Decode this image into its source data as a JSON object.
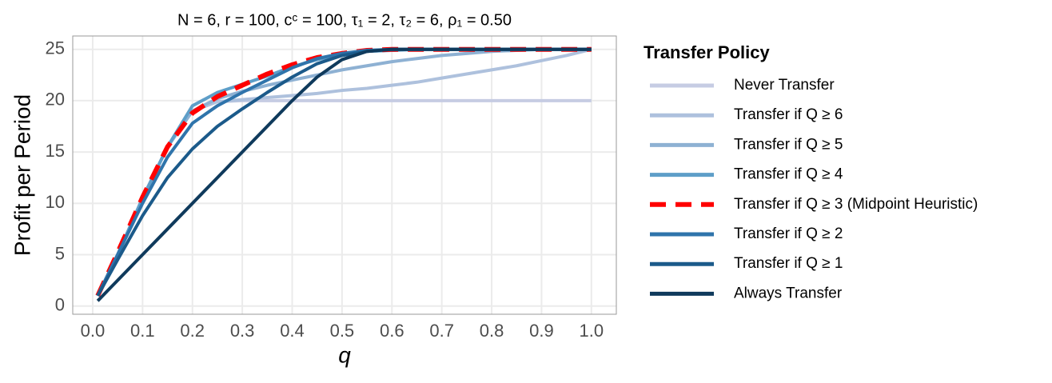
{
  "chart_data": {
    "type": "line",
    "title": "N = 6, r = 100, cᶜ = 100, τ₁ = 2, τ₂ = 6, ρ₁ = 0.50",
    "x_label": "q",
    "y_label": "Profit per Period",
    "legend_title": "Transfer Policy",
    "legend_position": "right",
    "grid": true,
    "xlim": [
      -0.04,
      1.05
    ],
    "ylim": [
      -0.8,
      26.3
    ],
    "xticks": [
      {
        "value": 0,
        "label": "0.0"
      },
      0.1,
      0.2,
      0.3,
      0.4,
      0.5,
      0.6,
      0.7,
      0.8,
      0.9,
      {
        "value": 1,
        "label": "1.0"
      }
    ],
    "yticks": [
      0,
      5,
      10,
      15,
      20,
      25
    ],
    "x": [
      0.01,
      0.05,
      0.1,
      0.15,
      0.2,
      0.25,
      0.3,
      0.35,
      0.4,
      0.45,
      0.5,
      0.55,
      0.6,
      0.65,
      0.7,
      0.75,
      0.8,
      0.85,
      0.9,
      0.95,
      1.0
    ],
    "series": [
      {
        "name": "Never Transfer",
        "color": "#c6cce3",
        "values": [
          1,
          5,
          10.5,
          15.5,
          19,
          19.9,
          20,
          20,
          20,
          20,
          20,
          20,
          20,
          20,
          20,
          20,
          20,
          20,
          20,
          20,
          20
        ]
      },
      {
        "name": "Transfer if Q ≥ 6",
        "color": "#aec1dd",
        "values": [
          1,
          5,
          10.5,
          15.5,
          19,
          19.9,
          20.1,
          20.3,
          20.5,
          20.7,
          21,
          21.2,
          21.5,
          21.8,
          22.2,
          22.6,
          23,
          23.4,
          23.9,
          24.4,
          25
        ]
      },
      {
        "name": "Transfer if Q ≥ 5",
        "color": "#8eb1d3",
        "values": [
          1,
          5,
          10.5,
          15.5,
          19,
          20.2,
          20.9,
          21.5,
          22,
          22.5,
          23,
          23.4,
          23.8,
          24.1,
          24.4,
          24.6,
          24.8,
          24.9,
          25,
          25,
          25
        ]
      },
      {
        "name": "Transfer if Q ≥ 4",
        "color": "#5e9ec8",
        "values": [
          1,
          5,
          10.5,
          15.5,
          19.5,
          20.8,
          21.6,
          22.4,
          23.3,
          24,
          24.5,
          24.8,
          24.9,
          25,
          25,
          25,
          25,
          25,
          25,
          25,
          25
        ]
      },
      {
        "name": "Transfer if Q ≥ 3 (Midpoint Heuristic)",
        "color": "#ff0000",
        "linestyle": "dashed",
        "values": [
          1,
          5.2,
          10.6,
          15.5,
          18.8,
          20.4,
          21.5,
          22.6,
          23.5,
          24.2,
          24.6,
          24.9,
          25,
          25,
          25,
          25,
          25,
          25,
          25,
          25,
          25
        ]
      },
      {
        "name": "Transfer if Q ≥ 2",
        "color": "#2f74ab",
        "values": [
          1,
          5,
          10,
          14.5,
          17.8,
          19.5,
          20.8,
          22,
          23.2,
          24.1,
          24.6,
          24.9,
          25,
          25,
          25,
          25,
          25,
          25,
          25,
          25,
          25
        ]
      },
      {
        "name": "Transfer if Q ≥ 1",
        "color": "#1b5a8a",
        "values": [
          1,
          4.5,
          8.8,
          12.5,
          15.3,
          17.5,
          19.2,
          20.8,
          22.3,
          23.6,
          24.4,
          24.8,
          25,
          25,
          25,
          25,
          25,
          25,
          25,
          25,
          25
        ]
      },
      {
        "name": "Always Transfer",
        "color": "#0f3a5c",
        "values": [
          0.5,
          2.5,
          5,
          7.5,
          10,
          12.5,
          15,
          17.5,
          20,
          22.3,
          24,
          24.8,
          25,
          25,
          25,
          25,
          25,
          25,
          25,
          25,
          25
        ]
      }
    ]
  }
}
